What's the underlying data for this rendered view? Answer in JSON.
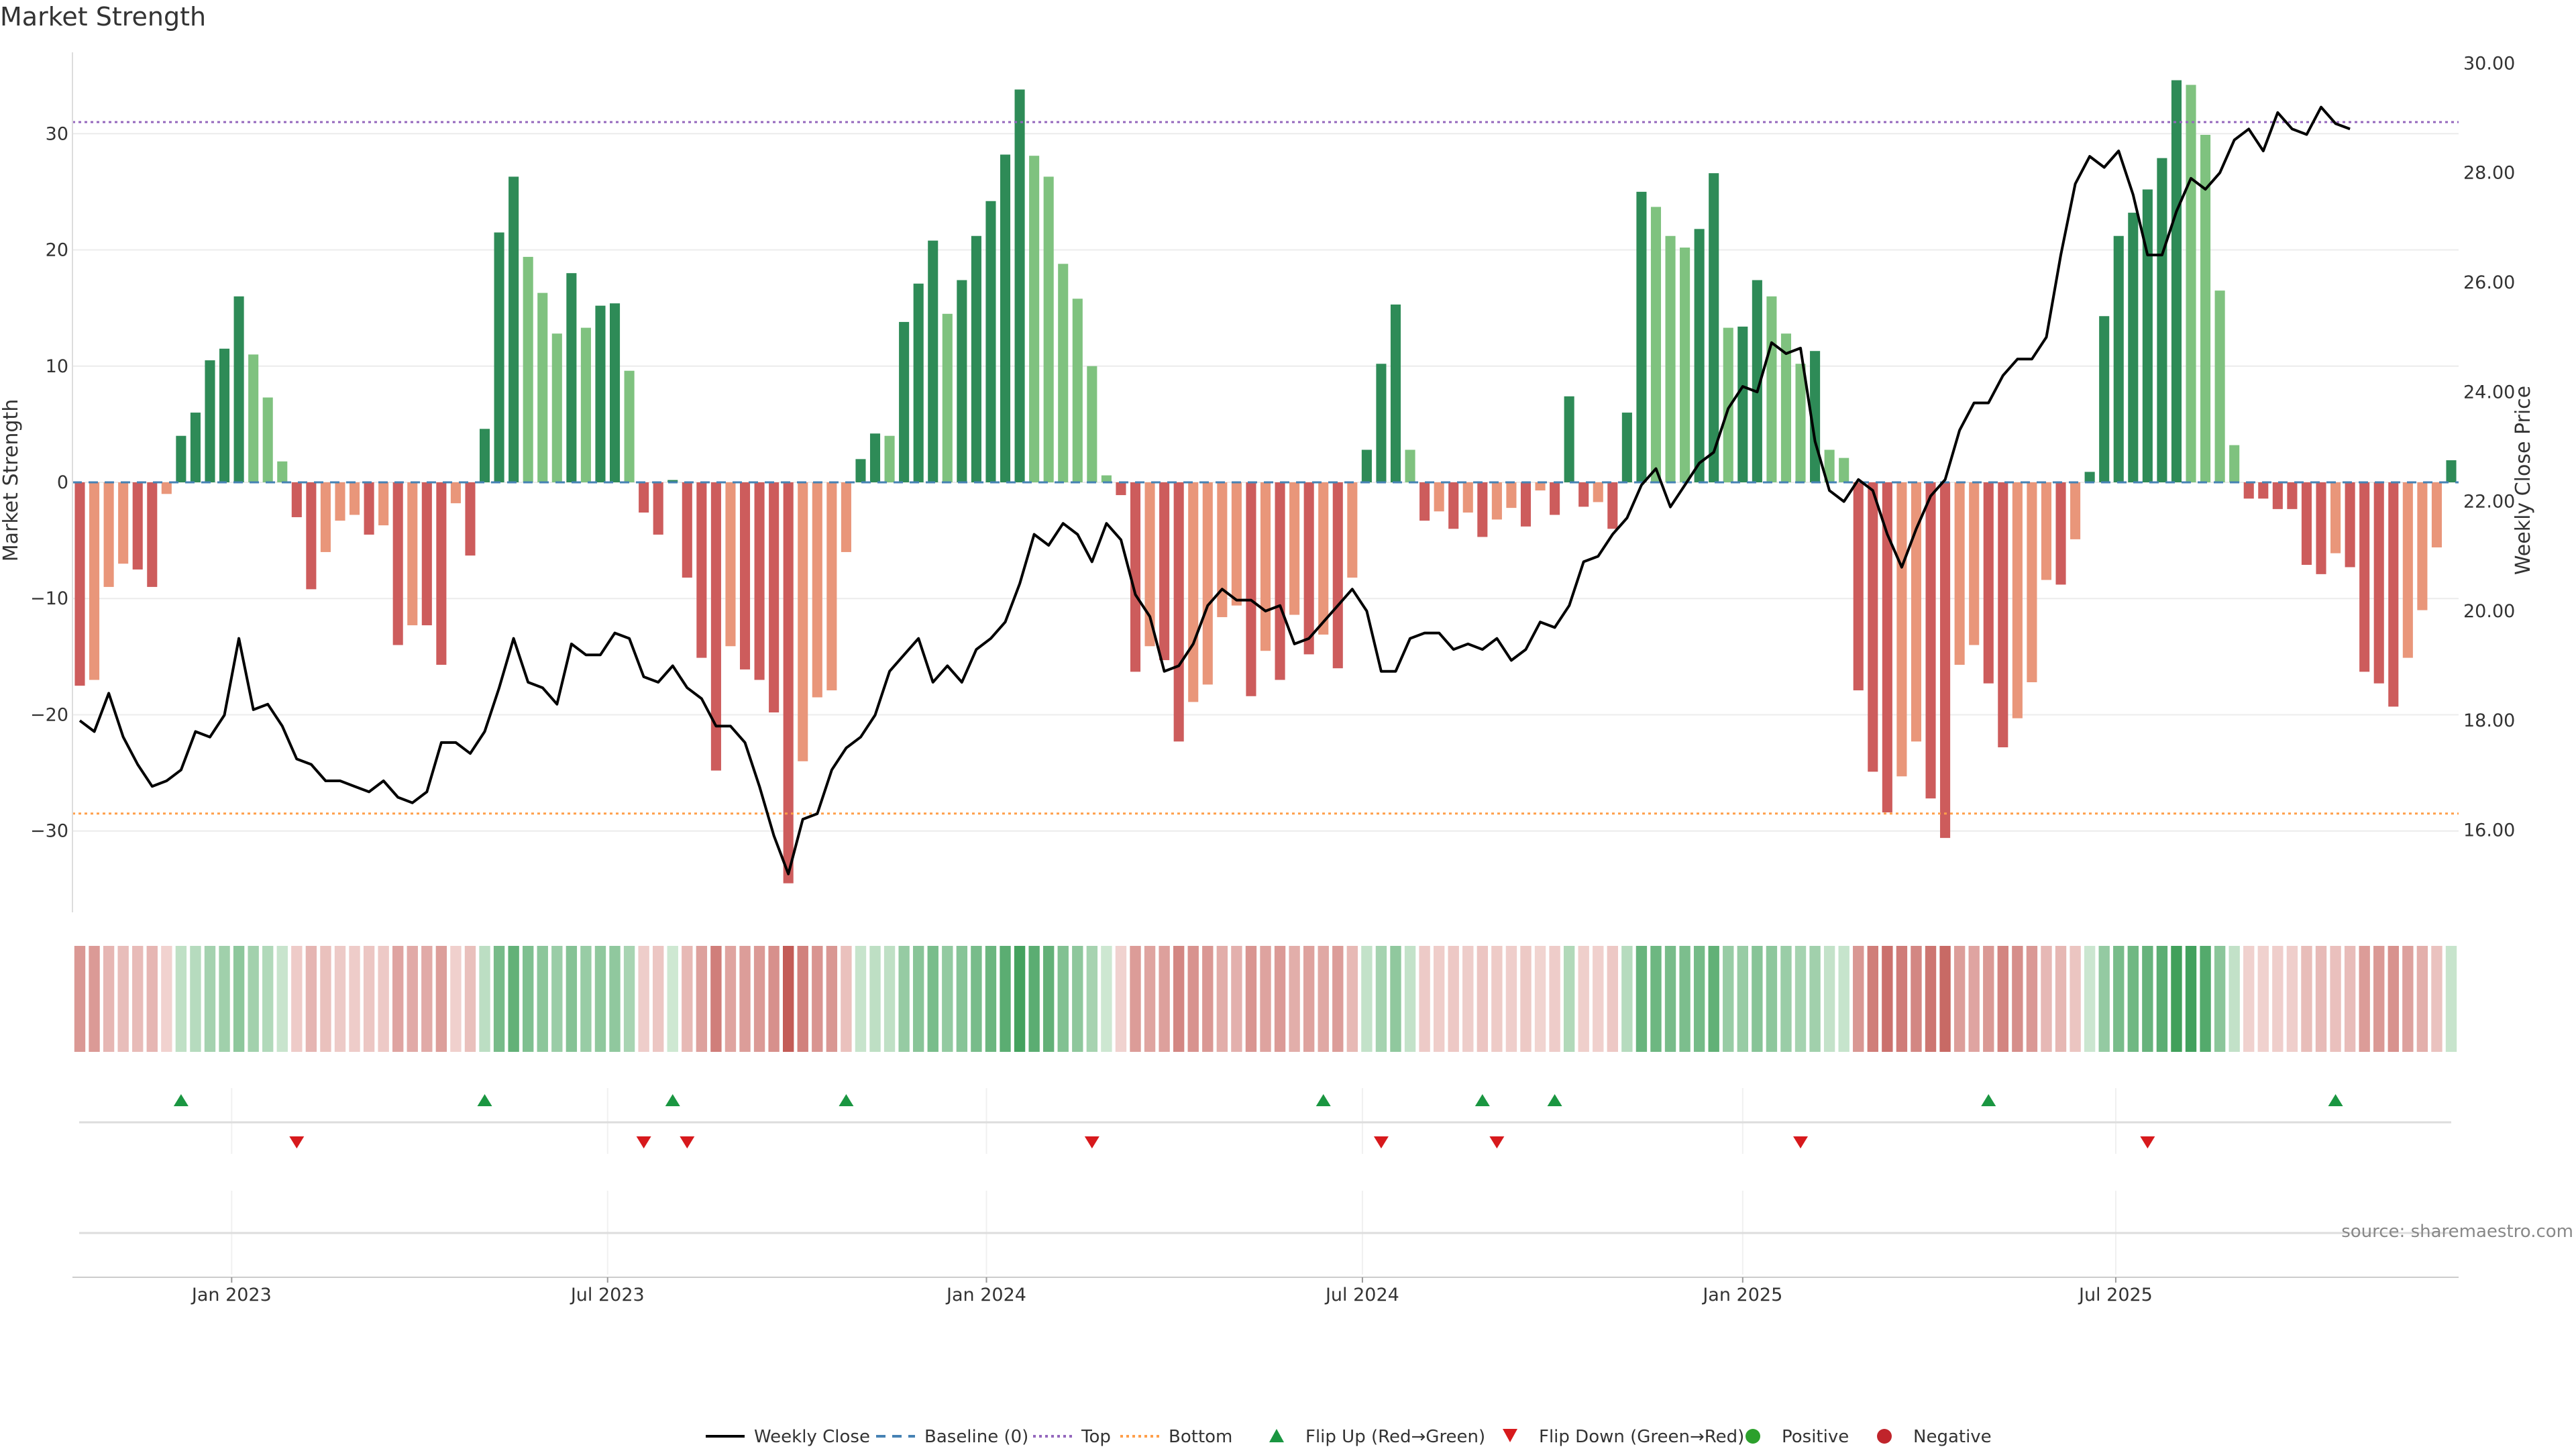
{
  "chart_data": {
    "type": "bar",
    "title": "Market Strength",
    "ylabel_left": "Market Strength",
    "ylabel_right": "Weekly Close Price",
    "left_ylim": [
      -37,
      37
    ],
    "right_ylim": [
      14.5,
      30.2
    ],
    "left_ticks": [
      -30,
      -20,
      -10,
      0,
      10,
      20,
      30
    ],
    "left_tick_labels": [
      "−30",
      "−20",
      "−10",
      "0",
      "10",
      "20",
      "30"
    ],
    "right_ticks": [
      16,
      18,
      20,
      22,
      24,
      26,
      28,
      30
    ],
    "right_tick_labels": [
      "16.00",
      "18.00",
      "20.00",
      "22.00",
      "24.00",
      "26.00",
      "28.00",
      "30.00"
    ],
    "top_level": 31,
    "bottom_level": -28.5,
    "x_ticks": [
      {
        "label": "Jan 2023",
        "week": 10.5
      },
      {
        "label": "Jul 2023",
        "week": 36.5
      },
      {
        "label": "Jan 2024",
        "week": 62.7
      },
      {
        "label": "Jul 2024",
        "week": 88.7
      },
      {
        "label": "Jan 2025",
        "week": 115.0
      },
      {
        "label": "Jul 2025",
        "week": 140.8
      }
    ],
    "strength": [
      -17.5,
      -17,
      -9,
      -7,
      -7.5,
      -9,
      -1,
      4,
      6,
      10.5,
      11.5,
      16,
      11,
      7.3,
      1.8,
      -3,
      -9.2,
      -6,
      -3.3,
      -2.8,
      -4.5,
      -3.7,
      -14,
      -12.3,
      -12.3,
      -15.7,
      -1.8,
      -6.3,
      4.6,
      21.5,
      26.3,
      19.4,
      16.3,
      12.8,
      18,
      13.3,
      15.2,
      15.4,
      9.6,
      -2.6,
      -4.5,
      0.2,
      -8.2,
      -15.1,
      -24.8,
      -14.1,
      -16.1,
      -17,
      -19.8,
      -34.5,
      -24,
      -18.5,
      -17.9,
      -6,
      2,
      4.2,
      4,
      13.8,
      17.1,
      20.8,
      14.5,
      17.4,
      21.2,
      24.2,
      28.2,
      33.8,
      28.1,
      26.3,
      18.8,
      15.8,
      10,
      0.6,
      -1.1,
      -16.3,
      -14.1,
      -15.3,
      -22.3,
      -18.9,
      -17.4,
      -11.6,
      -10.6,
      -18.4,
      -14.5,
      -17,
      -11.4,
      -14.8,
      -13.1,
      -16,
      -8.2,
      2.8,
      10.2,
      15.3,
      2.8,
      -3.3,
      -2.5,
      -4,
      -2.6,
      -4.7,
      -3.2,
      -2.2,
      -3.8,
      -0.7,
      -2.8,
      7.4,
      -2.1,
      -1.7,
      -4,
      6,
      25,
      23.7,
      21.2,
      20.2,
      21.8,
      26.6,
      13.3,
      13.4,
      17.4,
      16,
      12.8,
      10.2,
      11.3,
      2.8,
      2.1,
      -17.9,
      -24.9,
      -28.4,
      -25.3,
      -22.3,
      -27.2,
      -30.6,
      -15.7,
      -14,
      -17.3,
      -22.8,
      -20.3,
      -17.2,
      -8.4,
      -8.8,
      -4.9,
      0.9,
      14.3,
      21.2,
      23.2,
      25.2,
      27.9,
      34.6,
      34.2,
      29.9,
      16.5,
      3.2,
      -1.4,
      -1.4,
      -2.3,
      -2.3,
      -7.1,
      -7.9,
      -6.1,
      -7.3,
      -16.3,
      -17.3,
      -19.3,
      -15.1,
      -11,
      -5.6,
      1.9
    ],
    "strength_colors_legend": {
      "rising_positive": "#2e8b57",
      "falling_positive": "#7fc27f",
      "falling_negative": "#cd5c5c",
      "rising_negative": "#e9967a"
    },
    "weekly_close": [
      18,
      17.8,
      18.5,
      17.7,
      17.2,
      16.8,
      16.9,
      17.1,
      17.8,
      17.7,
      18.1,
      19.5,
      18.2,
      18.3,
      17.9,
      17.3,
      17.2,
      16.9,
      16.9,
      16.8,
      16.7,
      16.9,
      16.6,
      16.5,
      16.7,
      17.6,
      17.6,
      17.4,
      17.8,
      18.6,
      19.5,
      18.7,
      18.6,
      18.3,
      19.4,
      19.2,
      19.2,
      19.6,
      19.5,
      18.8,
      18.7,
      19,
      18.6,
      18.4,
      17.9,
      17.9,
      17.6,
      16.8,
      15.9,
      15.2,
      16.2,
      16.3,
      17.1,
      17.5,
      17.7,
      18.1,
      18.9,
      19.2,
      19.5,
      18.7,
      19,
      18.7,
      19.3,
      19.5,
      19.8,
      20.5,
      21.4,
      21.2,
      21.6,
      21.4,
      20.9,
      21.6,
      21.3,
      20.3,
      19.9,
      18.9,
      19,
      19.4,
      20.1,
      20.4,
      20.2,
      20.2,
      20,
      20.1,
      19.4,
      19.5,
      19.8,
      20.1,
      20.4,
      20,
      18.9,
      18.9,
      19.5,
      19.6,
      19.6,
      19.3,
      19.4,
      19.3,
      19.5,
      19.1,
      19.3,
      19.8,
      19.7,
      20.1,
      20.9,
      21,
      21.4,
      21.7,
      22.3,
      22.6,
      21.9,
      22.3,
      22.7,
      22.9,
      23.7,
      24.1,
      24,
      24.9,
      24.7,
      24.8,
      23.1,
      22.2,
      22,
      22.4,
      22.2,
      21.4,
      20.8,
      21.5,
      22.1,
      22.4,
      23.3,
      23.8,
      23.8,
      24.3,
      24.6,
      24.6,
      25,
      26.5,
      27.8,
      28.3,
      28.1,
      28.4,
      27.6,
      26.5,
      26.5,
      27.3,
      27.9,
      27.7,
      28,
      28.6,
      28.8,
      28.4,
      29.1,
      28.8,
      28.7,
      29.2,
      28.9,
      28.8
    ],
    "regime_strip": [
      -17.5,
      -17,
      -9,
      -7,
      -7.5,
      -9,
      -1,
      4,
      6,
      10.5,
      11.5,
      16,
      11,
      7.3,
      1.8,
      -3,
      -9.2,
      -6,
      -3.3,
      -2.8,
      -4.5,
      -3.7,
      -14,
      -12.3,
      -12.3,
      -15.7,
      -1.8,
      -6.3,
      4.6,
      21.5,
      26.3,
      19.4,
      16.3,
      12.8,
      18,
      13.3,
      15.2,
      15.4,
      9.6,
      -2.6,
      -4.5,
      0.2,
      -8.2,
      -15.1,
      -24.8,
      -14.1,
      -16.1,
      -17,
      -19.8,
      -34.5,
      -24,
      -18.5,
      -17.9,
      -6,
      2,
      4.2,
      4,
      13.8,
      17.1,
      20.8,
      14.5,
      17.4,
      21.2,
      24.2,
      28.2,
      33.8,
      28.1,
      26.3,
      18.8,
      15.8,
      10,
      0.6,
      -1.1,
      -16.3,
      -14.1,
      -15.3,
      -22.3,
      -18.9,
      -17.4,
      -11.6,
      -10.6,
      -18.4,
      -14.5,
      -17,
      -11.4,
      -14.8,
      -13.1,
      -16,
      -8.2,
      2.8,
      10.2,
      15.3,
      2.8,
      -3.3,
      -2.5,
      -4,
      -2.6,
      -4.7,
      -3.2,
      -2.2,
      -3.8,
      -0.7,
      -2.8,
      7.4,
      -2.1,
      -1.7,
      -4,
      6,
      25,
      23.7,
      21.2,
      20.2,
      21.8,
      26.6,
      13.3,
      13.4,
      17.4,
      16,
      12.8,
      10.2,
      11.3,
      2.8,
      2.1,
      -17.9,
      -24.9,
      -28.4,
      -25.3,
      -22.3,
      -27.2,
      -30.6,
      -15.7,
      -14,
      -17.3,
      -22.8,
      -20.3,
      -17.2,
      -8.4,
      -8.8,
      -4.9,
      0.9,
      14.3,
      21.2,
      23.2,
      25.2,
      27.9,
      34.6,
      34.2,
      29.9,
      16.5,
      3.2,
      -1.4,
      -1.4,
      -2.3,
      -2.3,
      -7.1,
      -7.9,
      -6.1,
      -7.3,
      -16.3,
      -17.3,
      -19.3,
      -15.1,
      -11,
      -5.6,
      1.9
    ],
    "flip_up_weeks": [
      7,
      28,
      41,
      53,
      86,
      97,
      102,
      132,
      156
    ],
    "flip_down_weeks": [
      15,
      39,
      42,
      70,
      90,
      98,
      119,
      143
    ],
    "colors": {
      "weekly_close": "#000000",
      "baseline": "#4682b4",
      "top": "#9467bd",
      "bottom": "#ff9f4a",
      "flip_up": "#1a9641",
      "flip_down": "#d7191c",
      "positive": "#2ca02c",
      "negative": "#c0242b",
      "grid": "#ececec"
    },
    "legend": [
      {
        "label": "Weekly Close",
        "kind": "line"
      },
      {
        "label": "Baseline (0)",
        "kind": "dashed"
      },
      {
        "label": "Top",
        "kind": "dotted-top"
      },
      {
        "label": "Bottom",
        "kind": "dotted-bottom"
      },
      {
        "label": "Flip Up (Red→Green)",
        "kind": "triangle-up"
      },
      {
        "label": "Flip Down (Green→Red)",
        "kind": "triangle-down"
      },
      {
        "label": "Positive",
        "kind": "dot-positive"
      },
      {
        "label": "Negative",
        "kind": "dot-negative"
      }
    ],
    "source": "source: sharemaestro.com"
  }
}
